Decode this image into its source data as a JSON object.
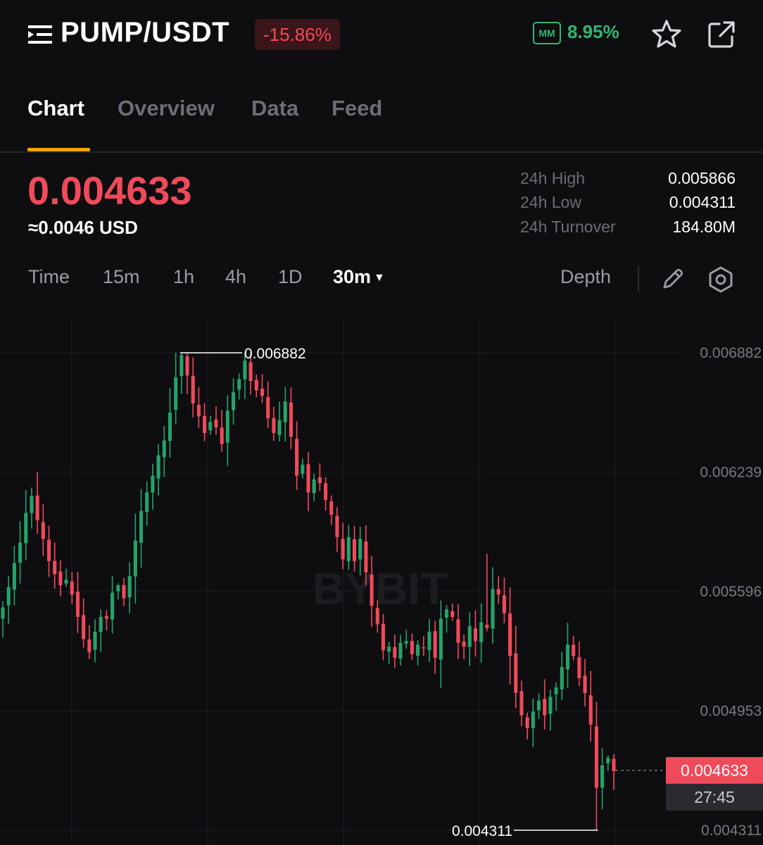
{
  "header": {
    "pair": "PUMP/USDT",
    "change_pct": "-15.86%",
    "mm_badge": "MM",
    "mm_value": "8.95%"
  },
  "tabs": [
    {
      "label": "Chart",
      "active": true
    },
    {
      "label": "Overview",
      "active": false
    },
    {
      "label": "Data",
      "active": false
    },
    {
      "label": "Feed",
      "active": false
    }
  ],
  "price": {
    "last": "0.004633",
    "usd": "≈0.0046 USD"
  },
  "stats": [
    {
      "label": "24h High",
      "value": "0.005866"
    },
    {
      "label": "24h Low",
      "value": "0.004311"
    },
    {
      "label": "24h Turnover",
      "value": "184.80M"
    }
  ],
  "intervals": {
    "items": [
      "Time",
      "15m",
      "1h",
      "4h",
      "1D"
    ],
    "selected": "30m",
    "depth": "Depth"
  },
  "colors": {
    "up": "#26a269",
    "down": "#f04a5a",
    "accent": "#f7a600",
    "background": "#0e0e11"
  },
  "chart_data": {
    "type": "candlestick",
    "interval": "30m",
    "watermark": "BYBIT",
    "y_ticks": [
      "0.006882",
      "0.006239",
      "0.005596",
      "0.004953",
      "0.004311"
    ],
    "ylim": [
      0.004311,
      0.006882
    ],
    "high_marker": "0.006882",
    "low_marker": "0.004311",
    "current_price": "0.004633",
    "countdown": "27:45",
    "closes": [
      0.00551,
      0.00562,
      0.00575,
      0.00586,
      0.00602,
      0.00611,
      0.00598,
      0.00588,
      0.00576,
      0.00569,
      0.00563,
      0.00566,
      0.00558,
      0.00546,
      0.00534,
      0.00527,
      0.00538,
      0.00546,
      0.00545,
      0.00559,
      0.00563,
      0.00556,
      0.00568,
      0.00587,
      0.00603,
      0.00613,
      0.00622,
      0.00633,
      0.00641,
      0.00656,
      0.00675,
      0.00687,
      0.00676,
      0.00661,
      0.00654,
      0.00645,
      0.00651,
      0.00648,
      0.00639,
      0.00657,
      0.00667,
      0.00674,
      0.00684,
      0.00673,
      0.00668,
      0.00665,
      0.00653,
      0.00645,
      0.00652,
      0.00662,
      0.00643,
      0.00622,
      0.00628,
      0.00613,
      0.0062,
      0.00618,
      0.00609,
      0.00601,
      0.00589,
      0.00577,
      0.00589,
      0.00576,
      0.00588,
      0.0057,
      0.00552,
      0.00542,
      0.00528,
      0.0053,
      0.00524,
      0.00532,
      0.00533,
      0.00526,
      0.00531,
      0.00529,
      0.00538,
      0.00524,
      0.00545,
      0.0055,
      0.00546,
      0.00532,
      0.0053,
      0.00541,
      0.00533,
      0.00543,
      0.0054,
      0.00561,
      0.00558,
      0.00548,
      0.00525,
      0.00505,
      0.00493,
      0.00486,
      0.00495,
      0.00501,
      0.00493,
      0.00503,
      0.00508,
      0.00519,
      0.00531,
      0.00525,
      0.00513,
      0.00505,
      0.00488,
      0.00454,
      0.00466,
      0.0047,
      0.00463
    ]
  }
}
